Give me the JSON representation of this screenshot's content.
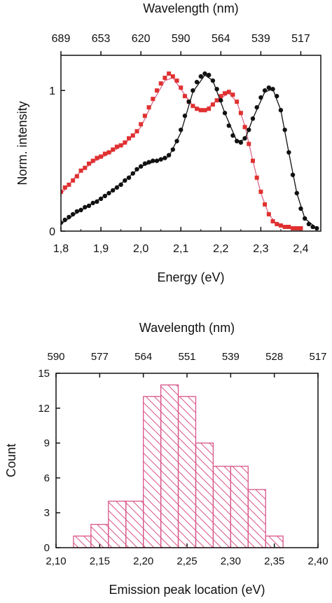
{
  "chart_data": [
    {
      "type": "scatter",
      "xlabel": "Energy (eV)",
      "ylabel": "Norm. intensity",
      "top_axis_label": "Wavelength (nm)",
      "xlim": [
        1.8,
        2.45
      ],
      "ylim": [
        0,
        1.25
      ],
      "xticks": [
        1.8,
        1.9,
        2.0,
        2.1,
        2.2,
        2.3,
        2.4
      ],
      "xtick_labels": [
        "1,8",
        "1,9",
        "2,0",
        "2,1",
        "2,2",
        "2,3",
        "2,4"
      ],
      "yticks": [
        0,
        1
      ],
      "ytick_labels": [
        "0",
        "1"
      ],
      "top_ticks": [
        {
          "x": 1.8,
          "label": "689"
        },
        {
          "x": 1.9,
          "label": "653"
        },
        {
          "x": 2.0,
          "label": "620"
        },
        {
          "x": 2.1,
          "label": "590"
        },
        {
          "x": 2.2,
          "label": "564"
        },
        {
          "x": 2.3,
          "label": "539"
        },
        {
          "x": 2.4,
          "label": "517"
        }
      ],
      "series": [
        {
          "color": "#e03030",
          "marker": "square",
          "points": [
            [
              1.8,
              0.28
            ],
            [
              1.81,
              0.31
            ],
            [
              1.82,
              0.33
            ],
            [
              1.83,
              0.36
            ],
            [
              1.84,
              0.39
            ],
            [
              1.85,
              0.43
            ],
            [
              1.86,
              0.45
            ],
            [
              1.87,
              0.48
            ],
            [
              1.88,
              0.5
            ],
            [
              1.89,
              0.52
            ],
            [
              1.9,
              0.53
            ],
            [
              1.91,
              0.55
            ],
            [
              1.92,
              0.56
            ],
            [
              1.93,
              0.58
            ],
            [
              1.94,
              0.6
            ],
            [
              1.95,
              0.61
            ],
            [
              1.96,
              0.63
            ],
            [
              1.97,
              0.66
            ],
            [
              1.98,
              0.68
            ],
            [
              1.99,
              0.71
            ],
            [
              2.0,
              0.76
            ],
            [
              2.01,
              0.82
            ],
            [
              2.02,
              0.88
            ],
            [
              2.03,
              0.94
            ],
            [
              2.04,
              1.0
            ],
            [
              2.05,
              1.05
            ],
            [
              2.06,
              1.09
            ],
            [
              2.07,
              1.12
            ],
            [
              2.08,
              1.1
            ],
            [
              2.09,
              1.07
            ],
            [
              2.1,
              1.02
            ],
            [
              2.11,
              0.96
            ],
            [
              2.12,
              0.92
            ],
            [
              2.13,
              0.89
            ],
            [
              2.14,
              0.87
            ],
            [
              2.15,
              0.86
            ],
            [
              2.16,
              0.86
            ],
            [
              2.17,
              0.87
            ],
            [
              2.18,
              0.9
            ],
            [
              2.19,
              0.93
            ],
            [
              2.2,
              0.96
            ],
            [
              2.21,
              0.98
            ],
            [
              2.22,
              0.99
            ],
            [
              2.23,
              0.97
            ],
            [
              2.24,
              0.92
            ],
            [
              2.25,
              0.84
            ],
            [
              2.26,
              0.74
            ],
            [
              2.27,
              0.62
            ],
            [
              2.28,
              0.5
            ],
            [
              2.29,
              0.38
            ],
            [
              2.3,
              0.28
            ],
            [
              2.31,
              0.19
            ],
            [
              2.32,
              0.12
            ],
            [
              2.33,
              0.07
            ],
            [
              2.34,
              0.05
            ],
            [
              2.35,
              0.04
            ],
            [
              2.36,
              0.03
            ],
            [
              2.37,
              0.03
            ],
            [
              2.38,
              0.02
            ],
            [
              2.39,
              0.02
            ],
            [
              2.4,
              0.02
            ]
          ],
          "fit": [
            [
              1.8,
              0.26
            ],
            [
              1.84,
              0.4
            ],
            [
              1.88,
              0.49
            ],
            [
              1.92,
              0.55
            ],
            [
              1.96,
              0.62
            ],
            [
              2.0,
              0.74
            ],
            [
              2.03,
              0.92
            ],
            [
              2.06,
              1.07
            ],
            [
              2.08,
              1.09
            ],
            [
              2.1,
              1.01
            ],
            [
              2.13,
              0.89
            ],
            [
              2.16,
              0.86
            ],
            [
              2.19,
              0.93
            ],
            [
              2.22,
              0.98
            ],
            [
              2.24,
              0.92
            ],
            [
              2.26,
              0.75
            ],
            [
              2.28,
              0.5
            ],
            [
              2.3,
              0.27
            ],
            [
              2.32,
              0.12
            ],
            [
              2.34,
              0.05
            ],
            [
              2.37,
              0.03
            ],
            [
              2.4,
              0.02
            ]
          ]
        },
        {
          "color": "#111111",
          "marker": "circle",
          "points": [
            [
              1.8,
              0.06
            ],
            [
              1.81,
              0.08
            ],
            [
              1.82,
              0.1
            ],
            [
              1.83,
              0.12
            ],
            [
              1.84,
              0.14
            ],
            [
              1.85,
              0.15
            ],
            [
              1.86,
              0.17
            ],
            [
              1.87,
              0.18
            ],
            [
              1.88,
              0.2
            ],
            [
              1.89,
              0.21
            ],
            [
              1.9,
              0.23
            ],
            [
              1.91,
              0.25
            ],
            [
              1.92,
              0.27
            ],
            [
              1.93,
              0.29
            ],
            [
              1.94,
              0.31
            ],
            [
              1.95,
              0.33
            ],
            [
              1.96,
              0.36
            ],
            [
              1.97,
              0.38
            ],
            [
              1.98,
              0.41
            ],
            [
              1.99,
              0.44
            ],
            [
              2.0,
              0.46
            ],
            [
              2.01,
              0.48
            ],
            [
              2.02,
              0.49
            ],
            [
              2.03,
              0.5
            ],
            [
              2.04,
              0.5
            ],
            [
              2.05,
              0.51
            ],
            [
              2.06,
              0.52
            ],
            [
              2.07,
              0.54
            ],
            [
              2.08,
              0.58
            ],
            [
              2.09,
              0.64
            ],
            [
              2.1,
              0.72
            ],
            [
              2.11,
              0.82
            ],
            [
              2.12,
              0.92
            ],
            [
              2.13,
              1.0
            ],
            [
              2.14,
              1.06
            ],
            [
              2.15,
              1.1
            ],
            [
              2.16,
              1.12
            ],
            [
              2.17,
              1.11
            ],
            [
              2.18,
              1.07
            ],
            [
              2.19,
              1.01
            ],
            [
              2.2,
              0.93
            ],
            [
              2.21,
              0.84
            ],
            [
              2.22,
              0.75
            ],
            [
              2.23,
              0.68
            ],
            [
              2.24,
              0.64
            ],
            [
              2.25,
              0.63
            ],
            [
              2.26,
              0.66
            ],
            [
              2.27,
              0.72
            ],
            [
              2.28,
              0.8
            ],
            [
              2.29,
              0.88
            ],
            [
              2.3,
              0.95
            ],
            [
              2.31,
              1.0
            ],
            [
              2.32,
              1.02
            ],
            [
              2.33,
              1.01
            ],
            [
              2.34,
              0.96
            ],
            [
              2.35,
              0.86
            ],
            [
              2.36,
              0.72
            ],
            [
              2.37,
              0.56
            ],
            [
              2.38,
              0.4
            ],
            [
              2.39,
              0.27
            ],
            [
              2.4,
              0.16
            ],
            [
              2.41,
              0.09
            ],
            [
              2.42,
              0.05
            ],
            [
              2.43,
              0.03
            ],
            [
              2.44,
              0.02
            ]
          ],
          "fit": [
            [
              1.8,
              0.05
            ],
            [
              1.84,
              0.13
            ],
            [
              1.88,
              0.2
            ],
            [
              1.92,
              0.27
            ],
            [
              1.96,
              0.36
            ],
            [
              2.0,
              0.46
            ],
            [
              2.04,
              0.5
            ],
            [
              2.07,
              0.53
            ],
            [
              2.1,
              0.7
            ],
            [
              2.13,
              0.99
            ],
            [
              2.16,
              1.11
            ],
            [
              2.18,
              1.07
            ],
            [
              2.21,
              0.84
            ],
            [
              2.24,
              0.64
            ],
            [
              2.26,
              0.65
            ],
            [
              2.28,
              0.8
            ],
            [
              2.31,
              0.99
            ],
            [
              2.33,
              1.01
            ],
            [
              2.35,
              0.86
            ],
            [
              2.37,
              0.56
            ],
            [
              2.39,
              0.27
            ],
            [
              2.41,
              0.09
            ],
            [
              2.44,
              0.02
            ]
          ]
        }
      ]
    },
    {
      "type": "bar",
      "xlabel": "Emission peak location (eV)",
      "ylabel": "Count",
      "top_axis_label": "Wavelength (nm)",
      "xlim": [
        2.1,
        2.4
      ],
      "ylim": [
        0,
        15
      ],
      "bin_width": 0.02,
      "xticks": [
        2.1,
        2.15,
        2.2,
        2.25,
        2.3,
        2.35,
        2.4
      ],
      "xtick_labels": [
        "2,10",
        "2,15",
        "2,20",
        "2,25",
        "2,30",
        "2,35",
        "2,40"
      ],
      "yticks": [
        0,
        3,
        6,
        9,
        12,
        15
      ],
      "ytick_labels": [
        "0",
        "3",
        "6",
        "9",
        "12",
        "15"
      ],
      "top_ticks": [
        {
          "x": 2.1,
          "label": "590"
        },
        {
          "x": 2.15,
          "label": "577"
        },
        {
          "x": 2.2,
          "label": "564"
        },
        {
          "x": 2.25,
          "label": "551"
        },
        {
          "x": 2.3,
          "label": "539"
        },
        {
          "x": 2.35,
          "label": "528"
        },
        {
          "x": 2.4,
          "label": "517"
        }
      ],
      "bins": [
        2.12,
        2.14,
        2.16,
        2.18,
        2.2,
        2.22,
        2.24,
        2.26,
        2.28,
        2.3,
        2.32,
        2.34
      ],
      "values": [
        1,
        2,
        4,
        4,
        13,
        14,
        13,
        9,
        7,
        7,
        5,
        1
      ],
      "color": "#d9558a"
    }
  ]
}
